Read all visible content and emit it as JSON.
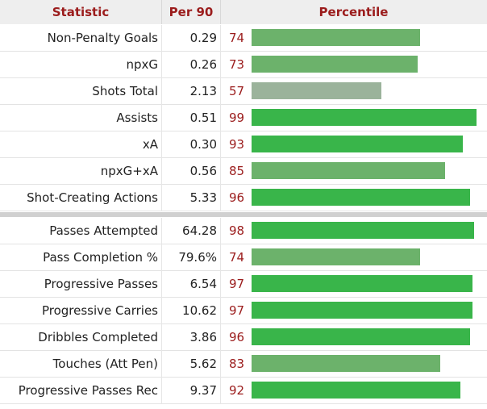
{
  "header": {
    "statistic": "Statistic",
    "per90": "Per 90",
    "percentile": "Percentile"
  },
  "colors": {
    "header_text": "#9b1c1c",
    "bar_strong": "#39b54a",
    "bar_medium": "#6cb26b",
    "bar_weak": "#9bb39b"
  },
  "groups": [
    {
      "rows": [
        {
          "stat": "Non-Penalty Goals",
          "per90": "0.29",
          "pct": "74",
          "pct_value": 74,
          "bar_color": "#6cb26b"
        },
        {
          "stat": "npxG",
          "per90": "0.26",
          "pct": "73",
          "pct_value": 73,
          "bar_color": "#6cb26b"
        },
        {
          "stat": "Shots Total",
          "per90": "2.13",
          "pct": "57",
          "pct_value": 57,
          "bar_color": "#9bb39b"
        },
        {
          "stat": "Assists",
          "per90": "0.51",
          "pct": "99",
          "pct_value": 99,
          "bar_color": "#39b54a"
        },
        {
          "stat": "xA",
          "per90": "0.30",
          "pct": "93",
          "pct_value": 93,
          "bar_color": "#39b54a"
        },
        {
          "stat": "npxG+xA",
          "per90": "0.56",
          "pct": "85",
          "pct_value": 85,
          "bar_color": "#6cb26b"
        },
        {
          "stat": "Shot-Creating Actions",
          "per90": "5.33",
          "pct": "96",
          "pct_value": 96,
          "bar_color": "#39b54a"
        }
      ]
    },
    {
      "rows": [
        {
          "stat": "Passes Attempted",
          "per90": "64.28",
          "pct": "98",
          "pct_value": 98,
          "bar_color": "#39b54a"
        },
        {
          "stat": "Pass Completion %",
          "per90": "79.6%",
          "pct": "74",
          "pct_value": 74,
          "bar_color": "#6cb26b"
        },
        {
          "stat": "Progressive Passes",
          "per90": "6.54",
          "pct": "97",
          "pct_value": 97,
          "bar_color": "#39b54a"
        },
        {
          "stat": "Progressive Carries",
          "per90": "10.62",
          "pct": "97",
          "pct_value": 97,
          "bar_color": "#39b54a"
        },
        {
          "stat": "Dribbles Completed",
          "per90": "3.86",
          "pct": "96",
          "pct_value": 96,
          "bar_color": "#39b54a"
        },
        {
          "stat": "Touches (Att Pen)",
          "per90": "5.62",
          "pct": "83",
          "pct_value": 83,
          "bar_color": "#6cb26b"
        },
        {
          "stat": "Progressive Passes Rec",
          "per90": "9.37",
          "pct": "92",
          "pct_value": 92,
          "bar_color": "#39b54a"
        }
      ]
    }
  ]
}
